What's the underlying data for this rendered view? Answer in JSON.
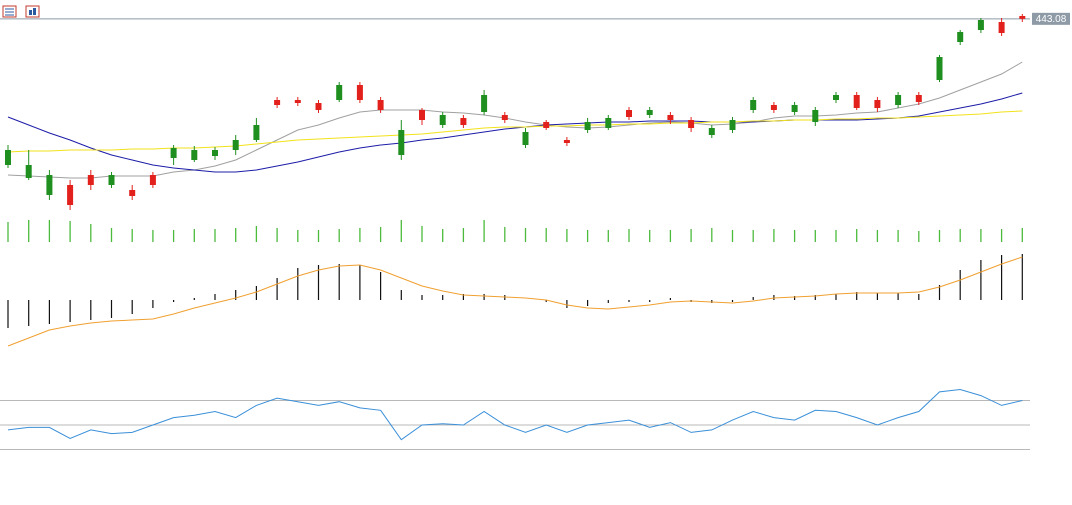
{
  "chart_data": [
    {
      "type": "candlestick",
      "ylim": [
        345,
        450
      ],
      "up_color": "#1f8f1f",
      "down_color": "#e3211c",
      "line_color": "#8e9aa6",
      "open": [
        370,
        363.5,
        355,
        360,
        365,
        360,
        357.5,
        365,
        373.5,
        372.5,
        374.5,
        377.5,
        382.5,
        402.5,
        402.5,
        401,
        402.5,
        410,
        402.5,
        375,
        397.5,
        390,
        393.5,
        396.5,
        395,
        380,
        391.5,
        382.5,
        387.5,
        388.5,
        397.5,
        395,
        395,
        392.5,
        385,
        387.5,
        397.5,
        400,
        396.5,
        391.5,
        402.5,
        405,
        402.5,
        400,
        405,
        412.5,
        431.5,
        437.5,
        441.5,
        444.5
      ],
      "high": [
        380,
        377.5,
        367.5,
        362.5,
        367.5,
        366.5,
        360,
        366.5,
        380,
        379.5,
        379,
        385,
        393.5,
        404,
        404,
        402.5,
        411.5,
        411.5,
        404,
        392.5,
        398.5,
        396.5,
        395,
        407.5,
        396.5,
        388.5,
        392.5,
        384,
        393.5,
        395,
        399,
        399,
        396.5,
        394,
        390,
        394,
        404,
        401.5,
        401.5,
        399,
        406.5,
        406.5,
        404,
        406.5,
        406.5,
        425,
        437.5,
        443.5,
        443.5,
        445.5
      ],
      "low": [
        368.5,
        362.5,
        352.5,
        347.5,
        357.5,
        358.5,
        352.5,
        358.5,
        370,
        371.5,
        372.5,
        375,
        381.5,
        398.5,
        399.5,
        396,
        401.5,
        401,
        396,
        372.5,
        390,
        388.5,
        388.5,
        395,
        391,
        378.5,
        387.5,
        379.5,
        386,
        387.5,
        392.5,
        393.5,
        390.5,
        386.5,
        383.5,
        386,
        396,
        396,
        395,
        389.5,
        401,
        397.5,
        396.5,
        398.5,
        400,
        411.5,
        430,
        436,
        434.5,
        441.5
      ],
      "close": [
        377.5,
        370,
        365,
        350,
        360,
        365,
        354.5,
        360,
        378.5,
        377.5,
        377.5,
        382.5,
        390,
        400,
        401,
        397.5,
        410,
        402.5,
        397.5,
        387.5,
        392.5,
        395,
        390,
        405,
        392.5,
        386.5,
        388.5,
        381,
        391.5,
        393.5,
        394,
        397.5,
        392.5,
        388.5,
        388.5,
        392.5,
        402.5,
        397.5,
        400,
        397.5,
        405,
        398.5,
        398.5,
        405,
        401.5,
        424,
        436.5,
        442.5,
        436,
        443.08
      ],
      "overlays": [
        {
          "color": "#a0a0a0",
          "values": [
            365,
            364.5,
            364,
            363.5,
            363.5,
            364.5,
            364.5,
            364.5,
            366.5,
            367.5,
            369.5,
            372.5,
            377.5,
            382.5,
            387.5,
            390,
            393.5,
            396.5,
            397.5,
            397.5,
            397.5,
            396.5,
            396,
            395,
            393.5,
            391.5,
            390,
            389,
            388.5,
            389,
            390,
            391,
            391.5,
            391,
            390,
            390.5,
            391.5,
            393.5,
            394.5,
            394.5,
            395,
            396,
            396.5,
            398.5,
            400.5,
            403.5,
            407.5,
            411.5,
            415.5,
            421.5
          ]
        },
        {
          "color": "#1c1ca8",
          "values": [
            394,
            390,
            386,
            382.5,
            378.5,
            375,
            372.5,
            370,
            368.5,
            367.5,
            366.5,
            366.5,
            367.5,
            369.5,
            371.5,
            374,
            376.5,
            378.5,
            380,
            381,
            382.5,
            383.5,
            385,
            386.5,
            388,
            389,
            390,
            390.5,
            391,
            391.5,
            391.5,
            392,
            392,
            392,
            391.5,
            391.5,
            391.5,
            392,
            392.5,
            392.5,
            392.5,
            392.5,
            393,
            393.5,
            394.5,
            396.5,
            398.5,
            400.5,
            403,
            406
          ]
        },
        {
          "color": "#f2e21a",
          "values": [
            376.5,
            377,
            377,
            377.5,
            377.5,
            377.5,
            378,
            378,
            378.5,
            378.5,
            379,
            379.5,
            380.5,
            381.5,
            382.5,
            383,
            383.5,
            384,
            384.5,
            385,
            385.5,
            386.5,
            387.5,
            388.5,
            389,
            389,
            389.5,
            389.5,
            390,
            390,
            390.5,
            390.5,
            391,
            391,
            391.5,
            391.5,
            392,
            392,
            392.5,
            392.5,
            393,
            393,
            393.5,
            393.5,
            394,
            394.5,
            395,
            395.5,
            396.5,
            397
          ]
        }
      ]
    },
    {
      "type": "bar",
      "ylim": [
        0,
        30
      ],
      "color": "#4cbb3c",
      "values": [
        20,
        22,
        22,
        21,
        18,
        14,
        13,
        12,
        12,
        13,
        13,
        14,
        16,
        14,
        12,
        12,
        13,
        14,
        15,
        22,
        16,
        13,
        14,
        22,
        15,
        14,
        14,
        13,
        12,
        12,
        13,
        12,
        12,
        13,
        14,
        12,
        12,
        13,
        12,
        12,
        12,
        13,
        12,
        12,
        11,
        12,
        13,
        13,
        13,
        14
      ]
    },
    {
      "type": "macd",
      "ylim": [
        -50,
        50
      ],
      "color": "#111111",
      "values": [
        -28,
        -26,
        -24,
        -22,
        -20,
        -18,
        -14,
        -8,
        -2,
        2,
        6,
        10,
        14,
        22,
        32,
        35,
        36,
        35,
        28,
        10,
        5,
        5,
        6,
        6,
        5,
        0,
        -2,
        -8,
        -6,
        -3,
        -2,
        -2,
        2,
        -2,
        -3,
        -2,
        3,
        5,
        4,
        5,
        6,
        8,
        7,
        7,
        6,
        15,
        30,
        40,
        45,
        46
      ],
      "series": [
        {
          "color": "#f0a030",
          "values": [
            -46,
            -38,
            -30,
            -26,
            -23,
            -21,
            -20,
            -19,
            -14,
            -8,
            -3,
            2,
            8,
            16,
            24,
            30,
            34,
            35,
            30,
            22,
            14,
            9,
            5,
            4,
            3,
            2,
            0,
            -5,
            -8,
            -9,
            -7,
            -5,
            -2,
            -1,
            -2,
            -3,
            -1,
            2,
            3,
            4,
            6,
            7,
            7,
            7,
            8,
            13,
            20,
            28,
            36,
            43
          ]
        }
      ]
    },
    {
      "type": "line",
      "ylim": [
        20,
        80
      ],
      "levels": [
        30,
        50,
        70
      ],
      "level_color": "#b8b8b8",
      "series": [
        {
          "color": "#3a8fd8",
          "values": [
            46,
            48,
            48,
            39,
            46,
            43,
            44,
            50,
            56,
            58,
            61,
            56,
            66,
            72,
            69,
            66,
            69,
            64,
            62,
            38,
            50,
            51,
            50,
            61,
            50,
            44,
            50,
            44,
            50,
            52,
            54,
            48,
            52,
            44,
            46,
            54,
            61,
            56,
            54,
            62,
            61,
            56,
            50,
            56,
            61,
            77,
            79,
            74,
            66,
            70
          ]
        }
      ]
    }
  ]
}
